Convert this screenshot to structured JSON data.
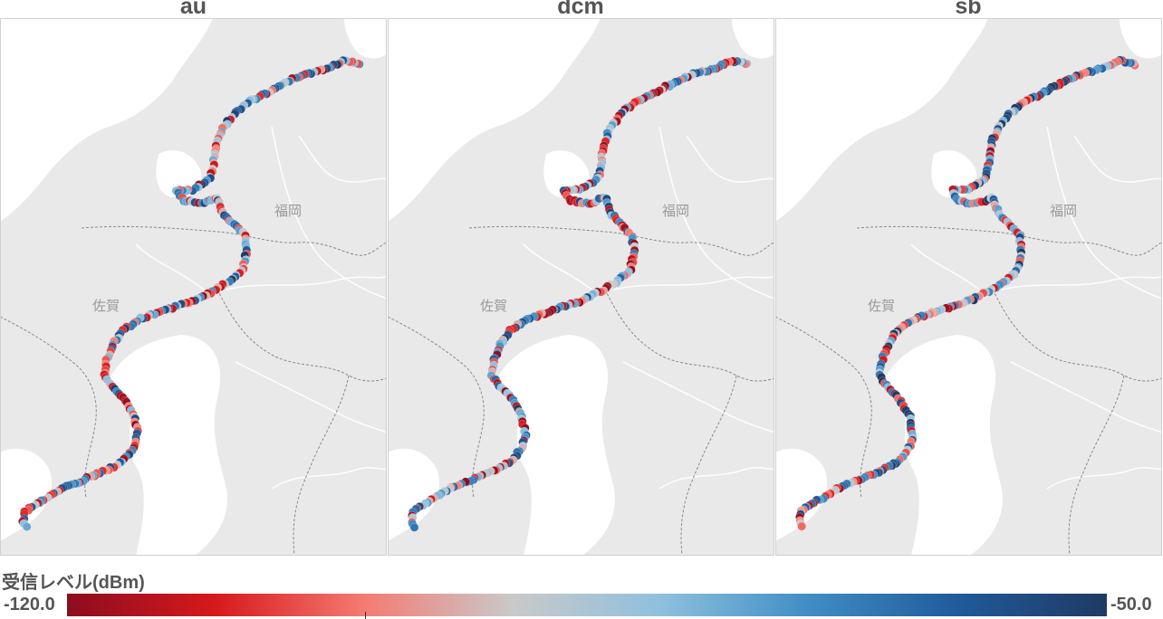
{
  "panels": [
    {
      "title": "au"
    },
    {
      "title": "dcm"
    },
    {
      "title": "sb"
    }
  ],
  "map_labels": {
    "fukuoka": "福岡",
    "saga": "佐賀"
  },
  "legend": {
    "title": "受信レベル(dBm)",
    "min": "-120.0",
    "max": "-50.0",
    "min_value": -120.0,
    "max_value": -50.0,
    "palette": [
      "#8c0d1f",
      "#d7191c",
      "#f47b72",
      "#c9c9c9",
      "#8ec0de",
      "#3f8dc4",
      "#205a9a",
      "#1f3a63"
    ]
  },
  "colors": {
    "land": "#e9e9e9",
    "water": "#ffffff",
    "border": "#8a8a8a",
    "river": "#ffffff",
    "divider": "#d0d0d0",
    "title_text": "#555555"
  }
}
